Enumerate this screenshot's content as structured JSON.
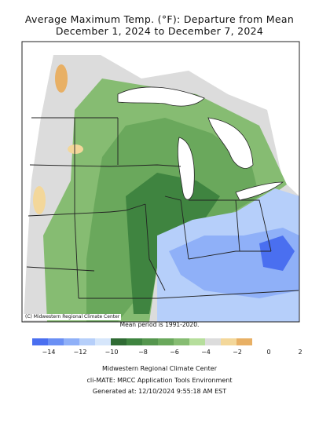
{
  "title_line1": "Average Maximum Temp. (°F): Departure from Mean",
  "title_line2": "December 1, 2024 to December 7, 2024",
  "credit": "(C) Midwestern Regional Climate Center",
  "mean_period": "Mean period is 1991-2020.",
  "legend": {
    "colors": [
      "#4a6ff0",
      "#6a8ff4",
      "#8fb0f8",
      "#b6cffa",
      "#d6e6fb",
      "#2f6b34",
      "#3f8440",
      "#55964e",
      "#6aa85c",
      "#86bc72",
      "#b6de9c",
      "#dcdcdc",
      "#f3d79a",
      "#e8b065"
    ],
    "tick_labels": [
      "−14",
      "−12",
      "−10",
      "−8",
      "−6",
      "−4",
      "−2",
      "0",
      "2"
    ]
  },
  "footer": {
    "org": "Midwestern Regional Climate Center",
    "tool": "cli-MATE: MRCC Application Tools Environment",
    "generated": "Generated at: 12/10/2024 9:55:18 AM EST"
  }
}
